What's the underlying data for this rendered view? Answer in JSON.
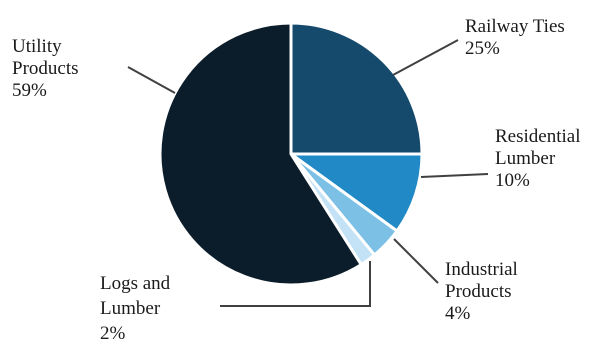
{
  "chart_data": {
    "type": "pie",
    "slices": [
      {
        "label_lines": [
          "Railway Ties"
        ],
        "pct_label": "25%",
        "value": 25,
        "color": "#164a6d"
      },
      {
        "label_lines": [
          "Residential",
          "Lumber"
        ],
        "pct_label": "10%",
        "value": 10,
        "color": "#2189c6"
      },
      {
        "label_lines": [
          "Industrial",
          "Products"
        ],
        "pct_label": "4%",
        "value": 4,
        "color": "#7cc0e6"
      },
      {
        "label_lines": [
          "Logs and",
          "Lumber"
        ],
        "pct_label": "2%",
        "value": 2,
        "color": "#c3e2f5"
      },
      {
        "label_lines": [
          "Utility",
          "Products"
        ],
        "pct_label": "59%",
        "value": 59,
        "color": "#0b1d2a"
      }
    ]
  }
}
